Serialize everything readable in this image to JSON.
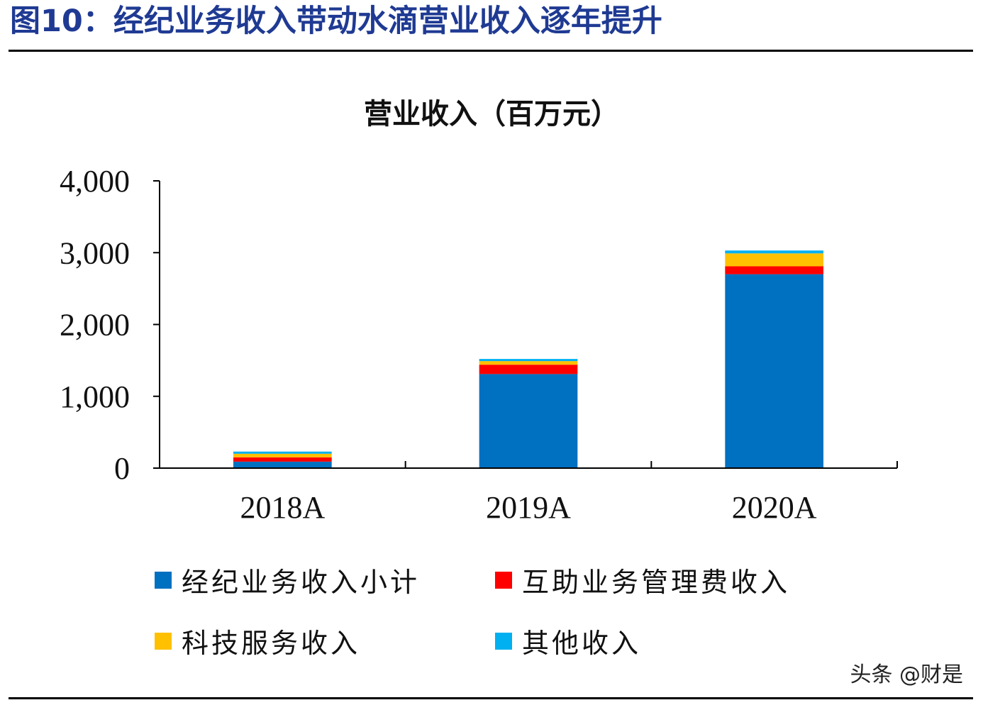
{
  "figure_title": "图10：经纪业务收入带动水滴营业收入逐年提升",
  "watermark": "头条 @财是",
  "colors": {
    "title": "#1f3a93",
    "brokerage": "#0070c0",
    "mutual_aid": "#ff0000",
    "tech": "#ffc000",
    "other": "#00b0f0"
  },
  "chart_data": {
    "type": "bar",
    "stacked": true,
    "title": "营业收入（百万元）",
    "categories": [
      "2018A",
      "2019A",
      "2020A"
    ],
    "series": [
      {
        "name": "经纪业务收入小计",
        "color": "#0070c0",
        "values": [
          90,
          1310,
          2700
        ]
      },
      {
        "name": "互助业务管理费收入",
        "color": "#ff0000",
        "values": [
          60,
          130,
          110
        ]
      },
      {
        "name": "科技服务收入",
        "color": "#ffc000",
        "values": [
          50,
          50,
          180
        ]
      },
      {
        "name": "其他收入",
        "color": "#00b0f0",
        "values": [
          30,
          30,
          40
        ]
      }
    ],
    "ylim": [
      0,
      4000
    ],
    "yticks": [
      0,
      1000,
      2000,
      3000,
      4000
    ],
    "ytick_labels": [
      "0",
      "1,000",
      "2,000",
      "3,000",
      "4,000"
    ],
    "grid": false,
    "legend_position": "bottom"
  }
}
